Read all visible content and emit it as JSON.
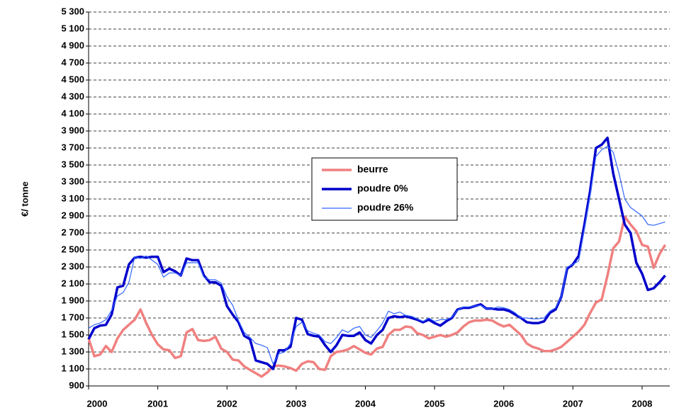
{
  "chart_data": {
    "type": "line",
    "y_label": "€/ tonne",
    "x": [
      2000,
      2000.083,
      2000.167,
      2000.25,
      2000.333,
      2000.417,
      2000.5,
      2000.583,
      2000.667,
      2000.75,
      2000.833,
      2000.917,
      2001,
      2001.083,
      2001.167,
      2001.25,
      2001.333,
      2001.417,
      2001.5,
      2001.583,
      2001.667,
      2001.75,
      2001.833,
      2001.917,
      2002,
      2002.083,
      2002.167,
      2002.25,
      2002.333,
      2002.417,
      2002.5,
      2002.583,
      2002.667,
      2002.75,
      2002.833,
      2002.917,
      2003,
      2003.083,
      2003.167,
      2003.25,
      2003.333,
      2003.417,
      2003.5,
      2003.583,
      2003.667,
      2003.75,
      2003.833,
      2003.917,
      2004,
      2004.083,
      2004.167,
      2004.25,
      2004.333,
      2004.417,
      2004.5,
      2004.583,
      2004.667,
      2004.75,
      2004.833,
      2004.917,
      2005,
      2005.083,
      2005.167,
      2005.25,
      2005.333,
      2005.417,
      2005.5,
      2005.583,
      2005.667,
      2005.75,
      2005.833,
      2005.917,
      2006,
      2006.083,
      2006.167,
      2006.25,
      2006.333,
      2006.417,
      2006.5,
      2006.583,
      2006.667,
      2006.75,
      2006.833,
      2006.917,
      2007,
      2007.083,
      2007.167,
      2007.25,
      2007.333,
      2007.417,
      2007.5,
      2007.583,
      2007.667,
      2007.75,
      2007.833,
      2007.917,
      2008,
      2008.083,
      2008.167,
      2008.25,
      2008.333
    ],
    "series": [
      {
        "name": "beurre",
        "color": "#f08080",
        "width": 3.5,
        "values": [
          1460,
          1250,
          1270,
          1370,
          1300,
          1460,
          1560,
          1620,
          1680,
          1800,
          1640,
          1500,
          1390,
          1330,
          1320,
          1230,
          1250,
          1530,
          1570,
          1440,
          1430,
          1440,
          1480,
          1340,
          1300,
          1210,
          1200,
          1130,
          1090,
          1050,
          1010,
          1060,
          1130,
          1140,
          1130,
          1110,
          1080,
          1160,
          1190,
          1180,
          1100,
          1090,
          1250,
          1300,
          1310,
          1330,
          1370,
          1330,
          1290,
          1270,
          1340,
          1360,
          1500,
          1560,
          1560,
          1600,
          1590,
          1520,
          1500,
          1460,
          1480,
          1500,
          1480,
          1500,
          1530,
          1600,
          1650,
          1670,
          1670,
          1680,
          1670,
          1630,
          1600,
          1620,
          1560,
          1500,
          1400,
          1360,
          1340,
          1310,
          1310,
          1330,
          1360,
          1420,
          1480,
          1540,
          1620,
          1760,
          1880,
          1920,
          2200,
          2520,
          2600,
          2890,
          2800,
          2720,
          2560,
          2540,
          2290,
          2450,
          2560
        ]
      },
      {
        "name": "poudre 0%",
        "color": "#0000cc",
        "width": 3.5,
        "values": [
          1450,
          1580,
          1610,
          1620,
          1740,
          2060,
          2080,
          2330,
          2410,
          2420,
          2410,
          2420,
          2420,
          2240,
          2280,
          2250,
          2200,
          2400,
          2380,
          2380,
          2200,
          2120,
          2120,
          2080,
          1840,
          1740,
          1650,
          1490,
          1450,
          1200,
          1180,
          1160,
          1100,
          1320,
          1320,
          1360,
          1700,
          1680,
          1510,
          1490,
          1480,
          1380,
          1300,
          1380,
          1500,
          1490,
          1490,
          1530,
          1440,
          1400,
          1500,
          1560,
          1700,
          1720,
          1710,
          1720,
          1700,
          1680,
          1650,
          1680,
          1640,
          1610,
          1660,
          1700,
          1800,
          1820,
          1820,
          1840,
          1860,
          1810,
          1810,
          1800,
          1800,
          1780,
          1740,
          1700,
          1650,
          1640,
          1640,
          1660,
          1760,
          1800,
          1950,
          2280,
          2330,
          2430,
          2800,
          3200,
          3700,
          3740,
          3820,
          3400,
          3100,
          2800,
          2700,
          2350,
          2220,
          2030,
          2050,
          2120,
          2200
        ]
      },
      {
        "name": "poudre 26%",
        "color": "#3366ff",
        "width": 1.2,
        "values": [
          1580,
          1620,
          1640,
          1680,
          1790,
          1960,
          2000,
          2120,
          2420,
          2400,
          2430,
          2380,
          2330,
          2180,
          2230,
          2230,
          2200,
          2350,
          2350,
          2350,
          2180,
          2150,
          2150,
          2110,
          1950,
          1850,
          1670,
          1530,
          1470,
          1400,
          1380,
          1350,
          1160,
          1280,
          1300,
          1400,
          1600,
          1650,
          1550,
          1520,
          1500,
          1420,
          1400,
          1470,
          1560,
          1530,
          1580,
          1600,
          1500,
          1470,
          1550,
          1640,
          1780,
          1750,
          1770,
          1730,
          1720,
          1690,
          1660,
          1700,
          1660,
          1680,
          1680,
          1710,
          1790,
          1830,
          1830,
          1840,
          1850,
          1810,
          1810,
          1830,
          1820,
          1800,
          1760,
          1700,
          1700,
          1690,
          1690,
          1700,
          1780,
          1820,
          1950,
          2300,
          2330,
          2370,
          2750,
          3150,
          3600,
          3680,
          3720,
          3650,
          3400,
          3100,
          3000,
          2950,
          2900,
          2800,
          2790,
          2810,
          2830
        ]
      }
    ],
    "xlim": [
      2000,
      2008.4
    ],
    "xticks": [
      2000,
      2001,
      2002,
      2003,
      2004,
      2005,
      2006,
      2007,
      2008
    ],
    "ylim": [
      900,
      5300
    ],
    "yticks": [
      900,
      {
        "value": 1100,
        "label": "1 100"
      },
      {
        "value": 1300,
        "label": "1 300"
      },
      {
        "value": 1500,
        "label": "1 500"
      },
      {
        "value": 1700,
        "label": "1 700"
      },
      {
        "value": 1900,
        "label": "1 900"
      },
      {
        "value": 2100,
        "label": "2 100"
      },
      {
        "value": 2300,
        "label": "2 300"
      },
      {
        "value": 2500,
        "label": "2 500"
      },
      {
        "value": 2700,
        "label": "2 700"
      },
      {
        "value": 2900,
        "label": "2 900"
      },
      {
        "value": 3100,
        "label": "3 100"
      },
      {
        "value": 3300,
        "label": "3 300"
      },
      {
        "value": 3500,
        "label": "3 500"
      },
      {
        "value": 3700,
        "label": "3 700"
      },
      {
        "value": 3900,
        "label": "3 900"
      },
      {
        "value": 4100,
        "label": "4 100"
      },
      {
        "value": 4300,
        "label": "4 300"
      },
      {
        "value": 4500,
        "label": "4 500"
      },
      {
        "value": 4700,
        "label": "4 700"
      },
      {
        "value": 4900,
        "label": "4 900"
      },
      {
        "value": 5100,
        "label": "5 100"
      },
      {
        "value": 5300,
        "label": "5 300"
      }
    ],
    "grid": true,
    "legend": "center"
  }
}
